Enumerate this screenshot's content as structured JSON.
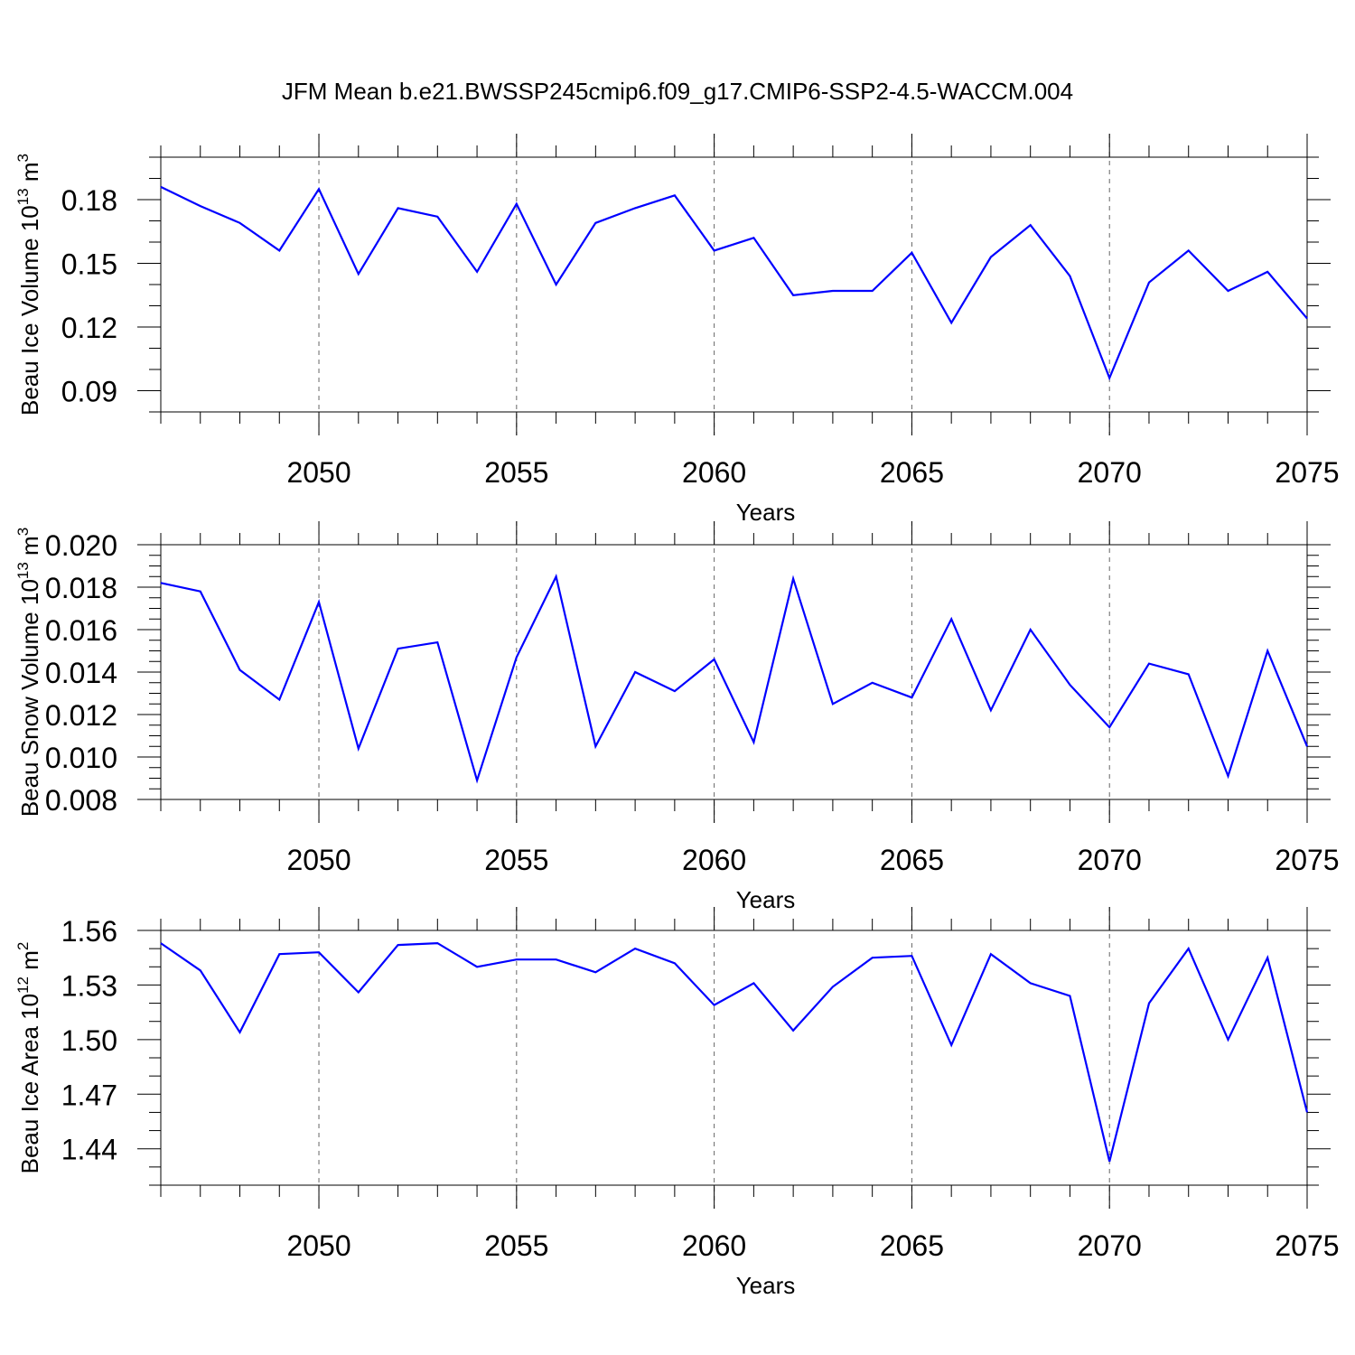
{
  "title": "JFM Mean b.e21.BWSSP245cmip6.f09_g17.CMIP6-SSP2-4.5-WACCM.004",
  "series_color": "#0000ff",
  "chart_data": [
    {
      "type": "line",
      "title": "",
      "xlabel": "Years",
      "ylabel": {
        "main": "Beau Ice Volume 10",
        "sup": "13",
        "unit": " m",
        "unit_sup": "3"
      },
      "xlim": [
        2046,
        2075
      ],
      "ylim": [
        0.08,
        0.2
      ],
      "xticks": [
        2050,
        2055,
        2060,
        2065,
        2070,
        2075
      ],
      "yticks": [
        0.09,
        0.12,
        0.15,
        0.18
      ],
      "ytick_labels": [
        "0.09",
        "0.12",
        "0.15",
        "0.18"
      ],
      "ytick_minor": 0.01,
      "x": [
        2046,
        2047,
        2048,
        2049,
        2050,
        2051,
        2052,
        2053,
        2054,
        2055,
        2056,
        2057,
        2058,
        2059,
        2060,
        2061,
        2062,
        2063,
        2064,
        2065,
        2066,
        2067,
        2068,
        2069,
        2070,
        2071,
        2072,
        2073,
        2074,
        2075
      ],
      "values": [
        0.186,
        0.177,
        0.169,
        0.156,
        0.185,
        0.145,
        0.176,
        0.172,
        0.146,
        0.178,
        0.14,
        0.169,
        0.176,
        0.182,
        0.156,
        0.162,
        0.135,
        0.137,
        0.137,
        0.155,
        0.122,
        0.153,
        0.168,
        0.144,
        0.096,
        0.141,
        0.156,
        0.137,
        0.146,
        0.124
      ]
    },
    {
      "type": "line",
      "title": "",
      "xlabel": "Years",
      "ylabel": {
        "main": "Beau Snow Volume 10",
        "sup": "13",
        "unit": " m",
        "unit_sup": "3"
      },
      "xlim": [
        2046,
        2075
      ],
      "ylim": [
        0.008,
        0.02
      ],
      "xticks": [
        2050,
        2055,
        2060,
        2065,
        2070,
        2075
      ],
      "yticks": [
        0.008,
        0.01,
        0.012,
        0.014,
        0.016,
        0.018,
        0.02
      ],
      "ytick_labels": [
        "0.008",
        "0.010",
        "0.012",
        "0.014",
        "0.016",
        "0.018",
        "0.020"
      ],
      "ytick_minor": 0.0005,
      "x": [
        2046,
        2047,
        2048,
        2049,
        2050,
        2051,
        2052,
        2053,
        2054,
        2055,
        2056,
        2057,
        2058,
        2059,
        2060,
        2061,
        2062,
        2063,
        2064,
        2065,
        2066,
        2067,
        2068,
        2069,
        2070,
        2071,
        2072,
        2073,
        2074,
        2075
      ],
      "values": [
        0.0182,
        0.0178,
        0.0141,
        0.0127,
        0.0173,
        0.0104,
        0.0151,
        0.0154,
        0.0089,
        0.0147,
        0.0185,
        0.0105,
        0.014,
        0.0131,
        0.0146,
        0.0107,
        0.0184,
        0.0125,
        0.0135,
        0.0128,
        0.0165,
        0.0122,
        0.016,
        0.0134,
        0.0114,
        0.0144,
        0.0139,
        0.0091,
        0.015,
        0.0105
      ]
    },
    {
      "type": "line",
      "title": "",
      "xlabel": "Years",
      "ylabel": {
        "main": "Beau Ice Area 10",
        "sup": "12",
        "unit": " m",
        "unit_sup": "2"
      },
      "xlim": [
        2046,
        2075
      ],
      "ylim": [
        1.42,
        1.56
      ],
      "xticks": [
        2050,
        2055,
        2060,
        2065,
        2070,
        2075
      ],
      "yticks": [
        1.44,
        1.47,
        1.5,
        1.53,
        1.56
      ],
      "ytick_labels": [
        "1.44",
        "1.47",
        "1.50",
        "1.53",
        "1.56"
      ],
      "ytick_minor": 0.01,
      "x": [
        2046,
        2047,
        2048,
        2049,
        2050,
        2051,
        2052,
        2053,
        2054,
        2055,
        2056,
        2057,
        2058,
        2059,
        2060,
        2061,
        2062,
        2063,
        2064,
        2065,
        2066,
        2067,
        2068,
        2069,
        2070,
        2071,
        2072,
        2073,
        2074,
        2075
      ],
      "values": [
        1.553,
        1.538,
        1.504,
        1.547,
        1.548,
        1.526,
        1.552,
        1.553,
        1.54,
        1.544,
        1.544,
        1.537,
        1.55,
        1.542,
        1.519,
        1.531,
        1.505,
        1.529,
        1.545,
        1.546,
        1.497,
        1.547,
        1.531,
        1.524,
        1.433,
        1.52,
        1.55,
        1.5,
        1.545,
        1.46
      ]
    }
  ]
}
